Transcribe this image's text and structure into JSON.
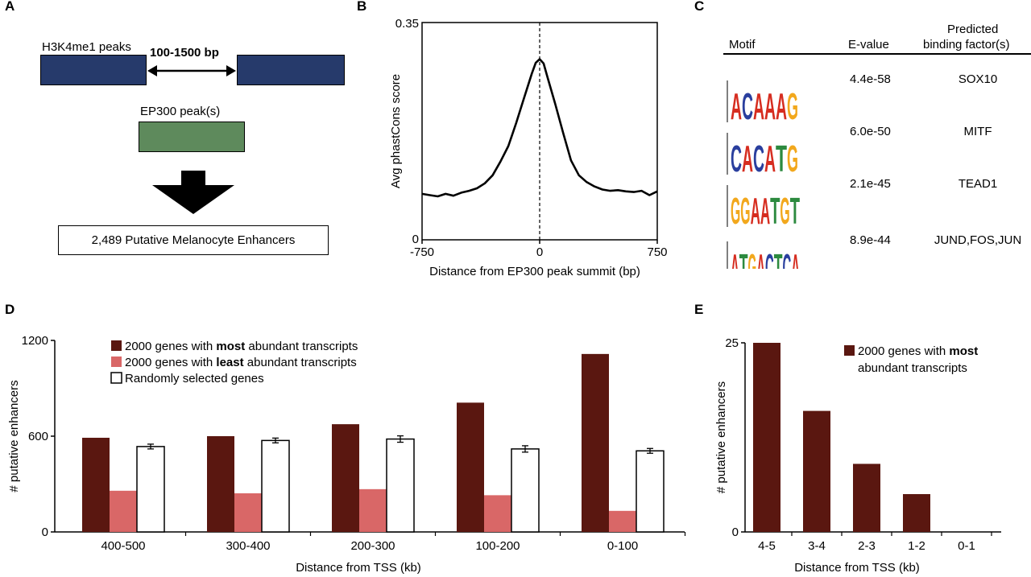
{
  "panel_a": {
    "label": "A",
    "h3k4me1_label": "H3K4me1 peaks",
    "distance_label": "100-1500 bp",
    "ep300_label": "EP300 peak(s)",
    "result_label": "2,489 Putative Melanocyte Enhancers",
    "colors": {
      "h3k4me1": "#263a6b",
      "ep300": "#5e8a5c"
    }
  },
  "panel_c": {
    "label": "C",
    "headers": {
      "motif": "Motif",
      "evalue": "E-value",
      "factor_line1": "Predicted",
      "factor_line2": "binding factor(s)"
    },
    "rows": [
      {
        "motif": "ACAAAG",
        "evalue": "4.4e-58",
        "factor": "SOX10"
      },
      {
        "motif": "CACATG",
        "evalue": "6.0e-50",
        "factor": "MITF"
      },
      {
        "motif": "GGAATGT",
        "evalue": "2.1e-45",
        "factor": "TEAD1"
      },
      {
        "motif": "ATGACTCA",
        "evalue": "8.9e-44",
        "factor": "JUND,FOS,JUN"
      }
    ]
  },
  "chart_data": [
    {
      "panel": "B",
      "type": "line",
      "xlabel": "Distance from EP300 peak summit (bp)",
      "ylabel": "Avg phastCons score",
      "xlim": [
        -750,
        750
      ],
      "ylim": [
        0,
        0.35
      ],
      "x_tick_labels": [
        "-750",
        "0",
        "750"
      ],
      "y_tick_labels": [
        "0",
        "0.35"
      ],
      "vertical_reference_line": 0,
      "series": [
        {
          "x": [
            -750,
            -700,
            -650,
            -600,
            -550,
            -500,
            -450,
            -400,
            -350,
            -300,
            -250,
            -200,
            -150,
            -100,
            -50,
            -25,
            0,
            25,
            50,
            100,
            150,
            200,
            250,
            300,
            350,
            400,
            450,
            500,
            550,
            600,
            650,
            700,
            750
          ],
          "values": [
            0.074,
            0.072,
            0.07,
            0.074,
            0.071,
            0.076,
            0.079,
            0.083,
            0.091,
            0.104,
            0.126,
            0.151,
            0.188,
            0.228,
            0.268,
            0.285,
            0.291,
            0.284,
            0.262,
            0.218,
            0.172,
            0.128,
            0.104,
            0.093,
            0.086,
            0.081,
            0.079,
            0.08,
            0.078,
            0.077,
            0.079,
            0.072,
            0.078
          ]
        }
      ]
    },
    {
      "panel": "D",
      "type": "bar",
      "xlabel": "Distance from TSS (kb)",
      "ylabel": "# putative enhancers",
      "ylim": [
        0,
        1200
      ],
      "y_tick_labels": [
        "0",
        "600",
        "1200"
      ],
      "categories": [
        "400-500",
        "300-400",
        "200-300",
        "100-200",
        "0-100"
      ],
      "legend_position": "top-left",
      "series": [
        {
          "name_parts": [
            "2000 genes with ",
            "most",
            " abundant transcripts"
          ],
          "color": "#5a1710",
          "values": [
            590,
            600,
            675,
            810,
            1115
          ]
        },
        {
          "name_parts": [
            "2000 genes with ",
            "least",
            " abundant transcripts"
          ],
          "color": "#d96767",
          "values": [
            258,
            242,
            268,
            230,
            132
          ]
        },
        {
          "name_parts": [
            "Randomly selected genes",
            "",
            ""
          ],
          "color": "#ffffff",
          "values": [
            535,
            573,
            582,
            520,
            508
          ],
          "error": [
            15,
            15,
            20,
            20,
            15
          ]
        }
      ]
    },
    {
      "panel": "E",
      "type": "bar",
      "xlabel": "Distance from TSS (kb)",
      "ylabel": "# putative enhancers",
      "ylim": [
        0,
        25
      ],
      "y_tick_labels": [
        "0",
        "25"
      ],
      "categories": [
        "4-5",
        "3-4",
        "2-3",
        "1-2",
        "0-1"
      ],
      "legend_position": "top-right",
      "series": [
        {
          "name_parts": [
            "2000 genes with ",
            "most",
            " abundant transcripts"
          ],
          "color": "#5a1710",
          "values": [
            25,
            16,
            9,
            5,
            0
          ]
        }
      ]
    }
  ]
}
